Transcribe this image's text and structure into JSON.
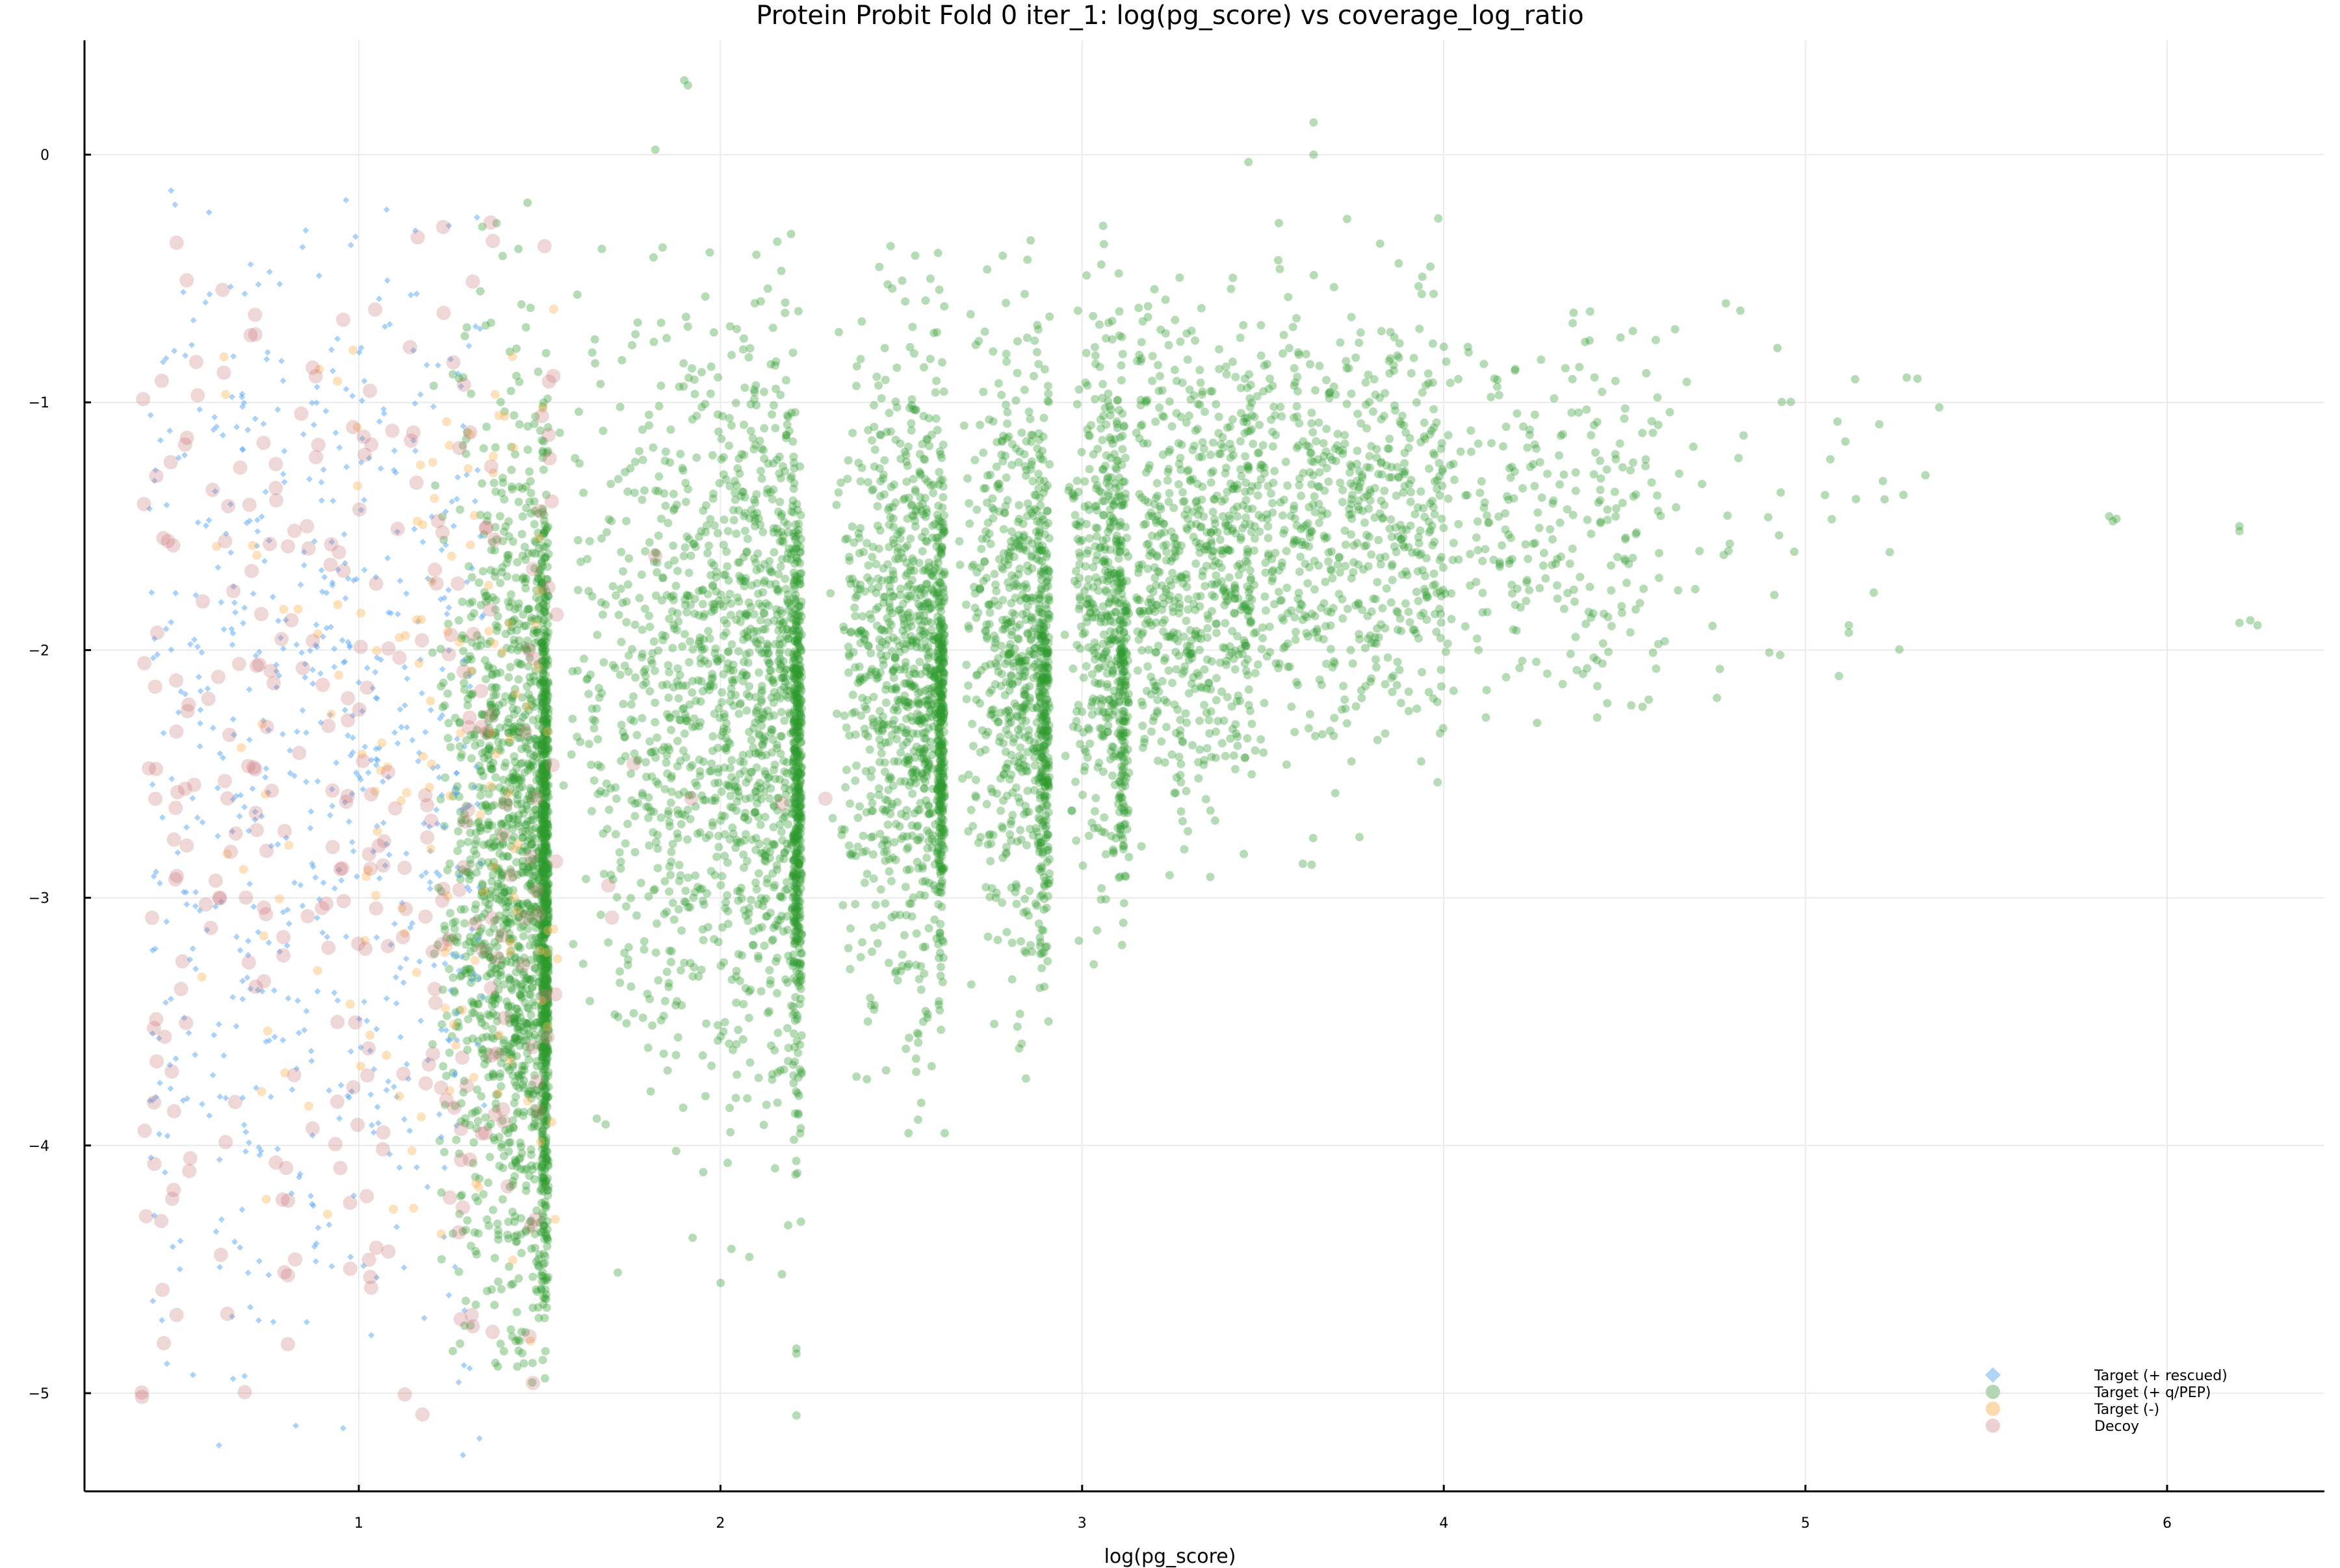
{
  "chart_data": {
    "type": "scatter",
    "title": "Protein Probit Fold 0 iter_1: log(pg_score) vs coverage_log_ratio",
    "xlabel": "log(pg_score)",
    "ylabel": "",
    "xlim": [
      0.24,
      6.43
    ],
    "ylim": [
      -5.44,
      0.46
    ],
    "x_ticks": [
      1,
      2,
      3,
      4,
      5,
      6
    ],
    "x_tick_labels": [
      "1",
      "2",
      "3",
      "4",
      "5",
      "6"
    ],
    "y_ticks": [
      0,
      -1,
      -2,
      -3,
      -4,
      -5
    ],
    "y_tick_labels": [
      "0",
      "−1",
      "−2",
      "−3",
      "−4",
      "−5"
    ],
    "grid": true,
    "legend_position": "bottom-right",
    "series": [
      {
        "name": "Target (+ rescued)",
        "marker": "diamond",
        "color": "#58a8f5",
        "legend_color": "#b0d4fa",
        "alpha": 0.5,
        "description": "Scattered x 0.4-1.35, y -5.2 to -0.1, roughly uniform",
        "clusters": [
          {
            "xmin": 0.42,
            "xmax": 1.35,
            "ymean": -2.5,
            "ysd": 1.25,
            "ymin": -5.25,
            "ymax": -0.1,
            "n": 650
          }
        ]
      },
      {
        "name": "Target (+ q/PEP)",
        "marker": "circle",
        "color": "#2e9a2e",
        "legend_color": "#b3d6b3",
        "alpha": 0.35,
        "description": "Dense vertical bands at x~1.52, 2.21, 2.61, 2.9, 3.1, 3.3, 3.45; diffuse cloud up to x~5.4; outliers to x~6.25",
        "clusters": [
          {
            "xmin": 1.2,
            "xmax": 1.52,
            "ymean": -2.9,
            "ysd": 0.9,
            "ymin": -5.0,
            "ymax": -0.15,
            "n": 1400,
            "skew_right": true
          },
          {
            "xmin": 1.505,
            "xmax": 1.525,
            "ymean": -3.0,
            "ysd": 0.75,
            "ymin": -5.0,
            "ymax": -0.8,
            "n": 700
          },
          {
            "xmin": 1.55,
            "xmax": 2.22,
            "ymean": -2.2,
            "ysd": 0.75,
            "ymin": -4.6,
            "ymax": -0.2,
            "n": 1300,
            "skew_right": true
          },
          {
            "xmin": 2.2,
            "xmax": 2.225,
            "ymean": -2.6,
            "ysd": 0.55,
            "ymin": -5.1,
            "ymax": -1.1,
            "n": 450
          },
          {
            "xmin": 2.3,
            "xmax": 2.62,
            "ymean": -2.1,
            "ysd": 0.65,
            "ymin": -3.95,
            "ymax": -0.3,
            "n": 900,
            "skew_right": true
          },
          {
            "xmin": 2.6,
            "xmax": 2.62,
            "ymean": -2.4,
            "ysd": 0.45,
            "ymin": -3.5,
            "ymax": -1.2,
            "n": 250
          },
          {
            "xmin": 2.65,
            "xmax": 2.91,
            "ymean": -2.0,
            "ysd": 0.6,
            "ymin": -3.8,
            "ymax": -0.2,
            "n": 650,
            "skew_right": true
          },
          {
            "xmin": 2.88,
            "xmax": 2.91,
            "ymean": -2.3,
            "ysd": 0.45,
            "ymin": -3.5,
            "ymax": -1.3,
            "n": 180
          },
          {
            "xmin": 2.95,
            "xmax": 3.12,
            "ymean": -1.8,
            "ysd": 0.55,
            "ymin": -3.3,
            "ymax": -0.2,
            "n": 450,
            "skew_right": true
          },
          {
            "xmin": 3.1,
            "xmax": 3.13,
            "ymean": -2.3,
            "ysd": 0.4,
            "ymin": -3.2,
            "ymax": -1.4,
            "n": 120
          },
          {
            "xmin": 3.15,
            "xmax": 3.47,
            "ymean": -1.7,
            "ysd": 0.5,
            "ymin": -3.0,
            "ymax": -0.05,
            "n": 600
          },
          {
            "xmin": 3.45,
            "xmax": 4.0,
            "ymean": -1.5,
            "ysd": 0.45,
            "ymin": -2.9,
            "ymax": -0.1,
            "n": 650
          },
          {
            "xmin": 4.0,
            "xmax": 4.6,
            "ymean": -1.45,
            "ysd": 0.4,
            "ymin": -2.3,
            "ymax": -0.6,
            "n": 260
          },
          {
            "xmin": 4.6,
            "xmax": 5.4,
            "ymean": -1.45,
            "ysd": 0.35,
            "ymin": -2.3,
            "ymax": -0.6,
            "n": 45
          }
        ],
        "outliers": [
          [
            1.9,
            0.3
          ],
          [
            1.91,
            0.28
          ],
          [
            1.82,
            0.02
          ],
          [
            3.64,
            0.13
          ],
          [
            3.64,
            0.0
          ],
          [
            3.46,
            -0.03
          ],
          [
            5.84,
            -1.46
          ],
          [
            5.86,
            -1.47
          ],
          [
            5.85,
            -1.48
          ],
          [
            6.2,
            -1.5
          ],
          [
            6.2,
            -1.52
          ],
          [
            6.2,
            -1.89
          ],
          [
            6.23,
            -1.88
          ],
          [
            6.25,
            -1.9
          ],
          [
            5.12,
            -1.9
          ],
          [
            5.12,
            -1.93
          ],
          [
            4.9,
            -2.01
          ],
          [
            4.93,
            -2.02
          ],
          [
            4.78,
            -0.6
          ],
          [
            4.82,
            -0.63
          ],
          [
            5.28,
            -0.9
          ],
          [
            5.37,
            -1.02
          ],
          [
            2.21,
            -4.82
          ],
          [
            2.21,
            -4.84
          ],
          [
            2.21,
            -5.09
          ],
          [
            2.17,
            -4.52
          ],
          [
            2.08,
            -4.45
          ],
          [
            2.02,
            -4.07
          ],
          [
            1.26,
            -4.83
          ],
          [
            1.28,
            -4.8
          ],
          [
            2.62,
            -3.95
          ],
          [
            2.52,
            -3.95
          ]
        ]
      },
      {
        "name": "Target (-)",
        "marker": "circle",
        "color": "#fdb35a",
        "legend_color": "#fdd9ae",
        "alpha": 0.4,
        "description": "Sparse small circles x 0.45-1.55, y -4.8 to -0.5",
        "clusters": [
          {
            "xmin": 0.45,
            "xmax": 1.55,
            "ymean": -2.6,
            "ysd": 1.1,
            "ymin": -4.8,
            "ymax": -0.5,
            "n": 150,
            "skew_right": true
          }
        ]
      },
      {
        "name": "Decoy",
        "marker": "circle",
        "color": "#c9787c",
        "legend_color": "#ecd0d2",
        "alpha": 0.3,
        "description": "Larger circles x 0.4-1.55, y -5.1 to -0.2; a few near x 1.7-2.3",
        "clusters": [
          {
            "xmin": 0.4,
            "xmax": 1.55,
            "ymean": -2.8,
            "ysd": 1.3,
            "ymin": -5.12,
            "ymax": -0.2,
            "n": 330
          }
        ],
        "outliers": [
          [
            1.69,
            -2.95
          ],
          [
            1.7,
            -3.08
          ],
          [
            1.76,
            -2.46
          ],
          [
            1.82,
            -1.62
          ],
          [
            1.92,
            -2.6
          ],
          [
            2.17,
            -2.62
          ],
          [
            2.29,
            -2.6
          ]
        ]
      }
    ]
  },
  "legend": {
    "items": [
      {
        "label": "Target (+ rescued)",
        "marker": "diamond-icon",
        "color": "#b0d4fa"
      },
      {
        "label": "Target (+ q/PEP)",
        "marker": "circle-icon",
        "color": "#b3d6b3"
      },
      {
        "label": "Target (-)",
        "marker": "circle-icon",
        "color": "#fdd9ae"
      },
      {
        "label": "Decoy",
        "marker": "circle-icon",
        "color": "#ecd0d2"
      }
    ]
  },
  "colors": {
    "axis": "#000000",
    "grid": "#ebebeb",
    "background": "#ffffff"
  }
}
